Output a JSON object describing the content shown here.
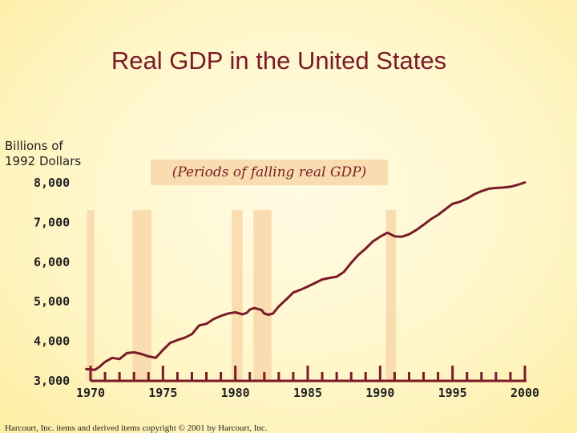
{
  "chart_data": {
    "type": "line",
    "title": "Real GDP in the United States",
    "ylabel": "Billions of 1992 Dollars",
    "ylabel_lines": [
      "Billions of",
      "1992 Dollars"
    ],
    "xlabel": "",
    "x_ticks": [
      "1970",
      "1975",
      "1980",
      "1985",
      "1990",
      "1995",
      "2000"
    ],
    "y_ticks": [
      "3,000",
      "4,000",
      "5,000",
      "6,000",
      "7,000",
      "8,000"
    ],
    "xlim": [
      1969.5,
      2000.5
    ],
    "ylim": [
      3000,
      8000
    ],
    "legend": "(Periods of falling real GDP)",
    "recessions": [
      [
        1969.75,
        1970.25
      ],
      [
        1972.9,
        1974.2
      ],
      [
        1979.75,
        1980.5
      ],
      [
        1981.25,
        1982.5
      ],
      [
        1990.4,
        1991.1
      ]
    ],
    "series": [
      {
        "name": "Real GDP",
        "color": "#7a1b28",
        "x": [
          1969.7,
          1970.0,
          1970.3,
          1970.6,
          1971.0,
          1971.5,
          1972.0,
          1972.5,
          1973.0,
          1973.5,
          1974.0,
          1974.5,
          1975.0,
          1975.5,
          1976.0,
          1976.5,
          1977.0,
          1977.5,
          1978.0,
          1978.5,
          1979.0,
          1979.5,
          1980.0,
          1980.5,
          1980.8,
          1981.0,
          1981.3,
          1981.5,
          1981.8,
          1982.0,
          1982.3,
          1982.6,
          1983.0,
          1983.5,
          1984.0,
          1984.5,
          1985.0,
          1985.5,
          1986.0,
          1986.5,
          1987.0,
          1987.5,
          1988.0,
          1988.5,
          1989.0,
          1989.5,
          1990.0,
          1990.5,
          1991.0,
          1991.5,
          1992.0,
          1992.5,
          1993.0,
          1993.5,
          1994.0,
          1994.5,
          1995.0,
          1995.5,
          1996.0,
          1996.5,
          1997.0,
          1997.5,
          1998.0,
          1998.5,
          1999.0,
          1999.5,
          2000.0
        ],
        "values": [
          3300,
          3290,
          3280,
          3350,
          3480,
          3580,
          3550,
          3700,
          3720,
          3680,
          3620,
          3580,
          3780,
          3960,
          4030,
          4090,
          4180,
          4400,
          4440,
          4560,
          4640,
          4700,
          4730,
          4680,
          4720,
          4800,
          4840,
          4820,
          4790,
          4700,
          4670,
          4700,
          4880,
          5050,
          5230,
          5300,
          5380,
          5470,
          5560,
          5600,
          5630,
          5750,
          5980,
          6180,
          6340,
          6520,
          6640,
          6740,
          6650,
          6640,
          6700,
          6810,
          6940,
          7080,
          7190,
          7330,
          7470,
          7520,
          7600,
          7710,
          7790,
          7850,
          7870,
          7880,
          7900,
          7950,
          8010
        ]
      }
    ]
  },
  "footer": "Harcourt, Inc. items and derived items copyright © 2001 by Harcourt, Inc."
}
